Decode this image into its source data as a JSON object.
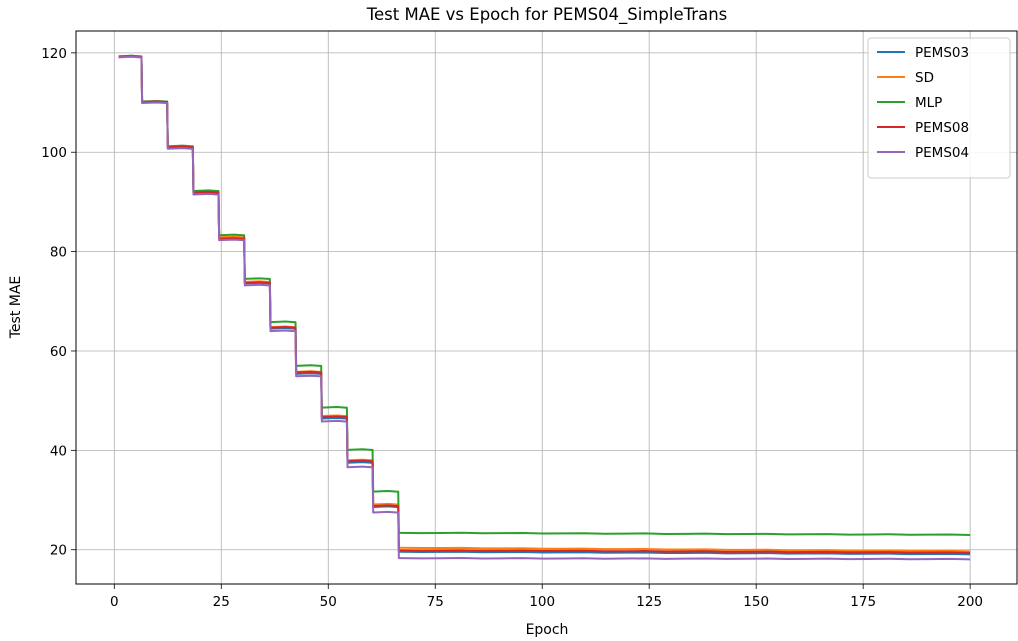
{
  "chart_data": {
    "type": "line",
    "title": "Test MAE vs Epoch for PEMS04_SimpleTrans",
    "xlabel": "Epoch",
    "ylabel": "Test MAE",
    "xlim": [
      -8.95,
      210.95
    ],
    "ylim": [
      13.1,
      124.4
    ],
    "xticks": [
      0,
      25,
      50,
      75,
      100,
      125,
      150,
      175,
      200
    ],
    "yticks": [
      20,
      40,
      60,
      80,
      100,
      120
    ],
    "grid": true,
    "legend_position": "top-right",
    "step_epochs": [
      6,
      12,
      18,
      24,
      30,
      36,
      42,
      48,
      54,
      60,
      66
    ],
    "last_epoch": 200,
    "series": [
      {
        "name": "PEMS03",
        "color": "#1f77b4",
        "levels": [
          119.2,
          110.0,
          100.9,
          91.8,
          82.8,
          73.6,
          64.5,
          55.4,
          46.4,
          37.5,
          28.6
        ],
        "plateau": [
          [
            67,
            19.6
          ],
          [
            200,
            19.1
          ]
        ]
      },
      {
        "name": "SD",
        "color": "#ff7f0e",
        "levels": [
          119.3,
          110.1,
          101.0,
          91.9,
          82.9,
          73.9,
          64.8,
          55.8,
          46.9,
          38.0,
          29.1
        ],
        "plateau": [
          [
            67,
            20.4
          ],
          [
            200,
            19.7
          ]
        ]
      },
      {
        "name": "MLP",
        "color": "#2ca02c",
        "levels": [
          119.3,
          110.2,
          101.2,
          92.2,
          83.3,
          74.5,
          65.8,
          57.0,
          48.6,
          40.1,
          31.7
        ],
        "plateau": [
          [
            67,
            23.4
          ],
          [
            200,
            23.0
          ]
        ]
      },
      {
        "name": "PEMS08",
        "color": "#d62728",
        "levels": [
          119.2,
          110.1,
          101.0,
          91.9,
          82.6,
          73.7,
          64.7,
          55.7,
          46.7,
          37.8,
          28.8
        ],
        "plateau": [
          [
            67,
            19.9
          ],
          [
            200,
            19.4
          ]
        ]
      },
      {
        "name": "PEMS04",
        "color": "#9467bd",
        "levels": [
          119.1,
          109.9,
          100.7,
          91.5,
          82.3,
          73.2,
          64.0,
          54.9,
          45.8,
          36.6,
          27.5
        ],
        "plateau": [
          [
            67,
            18.3
          ],
          [
            200,
            18.1
          ]
        ]
      }
    ]
  }
}
